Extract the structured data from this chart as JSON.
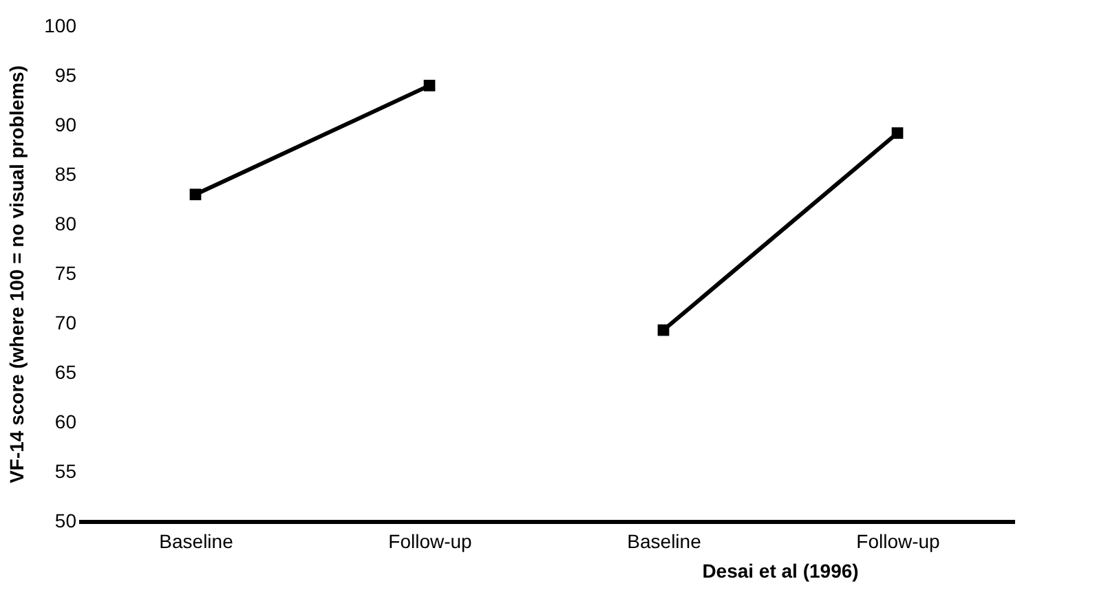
{
  "chart_data": {
    "type": "line",
    "ylabel": "VF-14 score (where 100 = no visual problems)",
    "categories": [
      "Baseline",
      "Follow-up",
      "Baseline",
      "Follow-up"
    ],
    "series": [
      {
        "color": "#000000",
        "values": [
          83,
          94,
          null,
          null
        ]
      },
      {
        "color": "#000000",
        "values": [
          null,
          null,
          69.3,
          89.2
        ]
      }
    ],
    "ylim": [
      50,
      100
    ],
    "yticks": [
      50,
      55,
      60,
      65,
      70,
      75,
      80,
      85,
      90,
      95,
      100
    ],
    "grid": false,
    "legend": false,
    "marker": "square",
    "line_style": "solid",
    "annotations": [
      "Desai et al (1996)"
    ]
  }
}
